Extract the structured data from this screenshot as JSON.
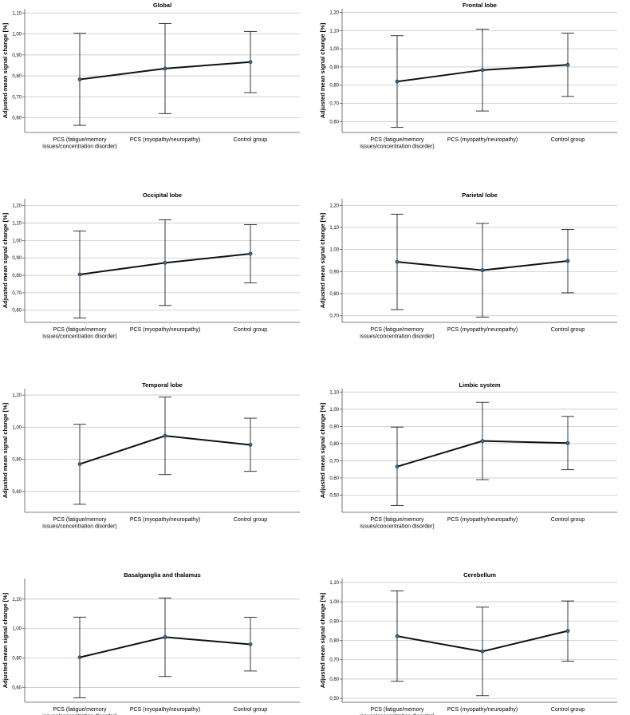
{
  "categories": [
    [
      "PCS (fatigue/memory",
      "issues/concentration disorder)"
    ],
    [
      "PCS (myopathy/neuropathy)"
    ],
    [
      "Control group"
    ]
  ],
  "ylabel": "Adjusted mean signal change [%]",
  "colors": {
    "line": "#111111",
    "point": "#3b6fa0",
    "grid": "#c8c8c8"
  },
  "chart_data": [
    {
      "type": "line",
      "title": "Global",
      "ylim": [
        0.53,
        1.12
      ],
      "yticks": [
        0.6,
        0.7,
        0.8,
        0.9,
        1.0,
        1.1
      ],
      "tick_labels": [
        "0,60",
        "0,70",
        "0,80",
        "0,90",
        "1,00",
        "1,10"
      ],
      "values": [
        0.783,
        0.835,
        0.866
      ],
      "err_low": [
        0.564,
        0.62,
        0.72
      ],
      "err_high": [
        1.003,
        1.05,
        1.012
      ]
    },
    {
      "type": "line",
      "title": "Frontal lobe",
      "ylim": [
        0.54,
        1.22
      ],
      "yticks": [
        0.6,
        0.7,
        0.8,
        0.9,
        1.0,
        1.1,
        1.2
      ],
      "tick_labels": [
        "0,60",
        "0,70",
        "0,80",
        "0,90",
        "1,00",
        "1,10",
        "1,20"
      ],
      "values": [
        0.82,
        0.883,
        0.912
      ],
      "err_low": [
        0.568,
        0.658,
        0.738
      ],
      "err_high": [
        1.072,
        1.108,
        1.086
      ]
    },
    {
      "type": "line",
      "title": "Occipital lobe",
      "ylim": [
        0.53,
        1.24
      ],
      "yticks": [
        0.6,
        0.7,
        0.8,
        0.9,
        1.0,
        1.1,
        1.2
      ],
      "tick_labels": [
        "0,60",
        "0,70",
        "0,80",
        "0,90",
        "1,00",
        "1,10",
        "1,20"
      ],
      "values": [
        0.805,
        0.872,
        0.924
      ],
      "err_low": [
        0.555,
        0.627,
        0.757
      ],
      "err_high": [
        1.055,
        1.119,
        1.091
      ]
    },
    {
      "type": "line",
      "title": "Parietal lobe",
      "ylim": [
        0.67,
        1.23
      ],
      "yticks": [
        0.7,
        0.8,
        0.9,
        1.0,
        1.1,
        1.2
      ],
      "tick_labels": [
        "0,70",
        "0,80",
        "0,90",
        "1,00",
        "1,10",
        "1,20"
      ],
      "values": [
        0.944,
        0.906,
        0.948
      ],
      "err_low": [
        0.728,
        0.694,
        0.804
      ],
      "err_high": [
        1.16,
        1.118,
        1.091
      ]
    },
    {
      "type": "line",
      "title": "Temporal lobe",
      "ylim": [
        0.47,
        1.24
      ],
      "yticks": [
        0.6,
        0.8,
        1.0,
        1.2
      ],
      "tick_labels": [
        "0,60",
        "0,80",
        "1,00",
        "1,20"
      ],
      "values": [
        0.77,
        0.946,
        0.89
      ],
      "err_low": [
        0.52,
        0.705,
        0.725
      ],
      "err_high": [
        1.018,
        1.188,
        1.056
      ]
    },
    {
      "type": "line",
      "title": "Limbic system",
      "ylim": [
        0.4,
        1.12
      ],
      "yticks": [
        0.5,
        0.6,
        0.7,
        0.8,
        0.9,
        1.0,
        1.1
      ],
      "tick_labels": [
        "0,50",
        "0,60",
        "0,70",
        "0,80",
        "0,90",
        "1,00",
        "1,10"
      ],
      "values": [
        0.666,
        0.815,
        0.803
      ],
      "err_low": [
        0.44,
        0.59,
        0.648
      ],
      "err_high": [
        0.896,
        1.04,
        0.958
      ]
    },
    {
      "type": "line",
      "title": "Basalganglia and thalamus",
      "ylim": [
        0.5,
        1.34
      ],
      "yticks": [
        0.6,
        0.8,
        1.0,
        1.2
      ],
      "tick_labels": [
        "0,60",
        "0,80",
        "1,00",
        "1,20"
      ],
      "values": [
        0.805,
        0.942,
        0.893
      ],
      "err_low": [
        0.53,
        0.675,
        0.712
      ],
      "err_high": [
        1.078,
        1.208,
        1.077
      ]
    },
    {
      "type": "line",
      "title": "Cerebellum",
      "ylim": [
        0.48,
        1.12
      ],
      "yticks": [
        0.5,
        0.6,
        0.7,
        0.8,
        0.9,
        1.0,
        1.1
      ],
      "tick_labels": [
        "0,50",
        "0,60",
        "0,70",
        "0,80",
        "0,90",
        "1,00",
        "1,10"
      ],
      "values": [
        0.822,
        0.743,
        0.849
      ],
      "err_low": [
        0.588,
        0.514,
        0.692
      ],
      "err_high": [
        1.056,
        0.972,
        1.004
      ]
    }
  ]
}
